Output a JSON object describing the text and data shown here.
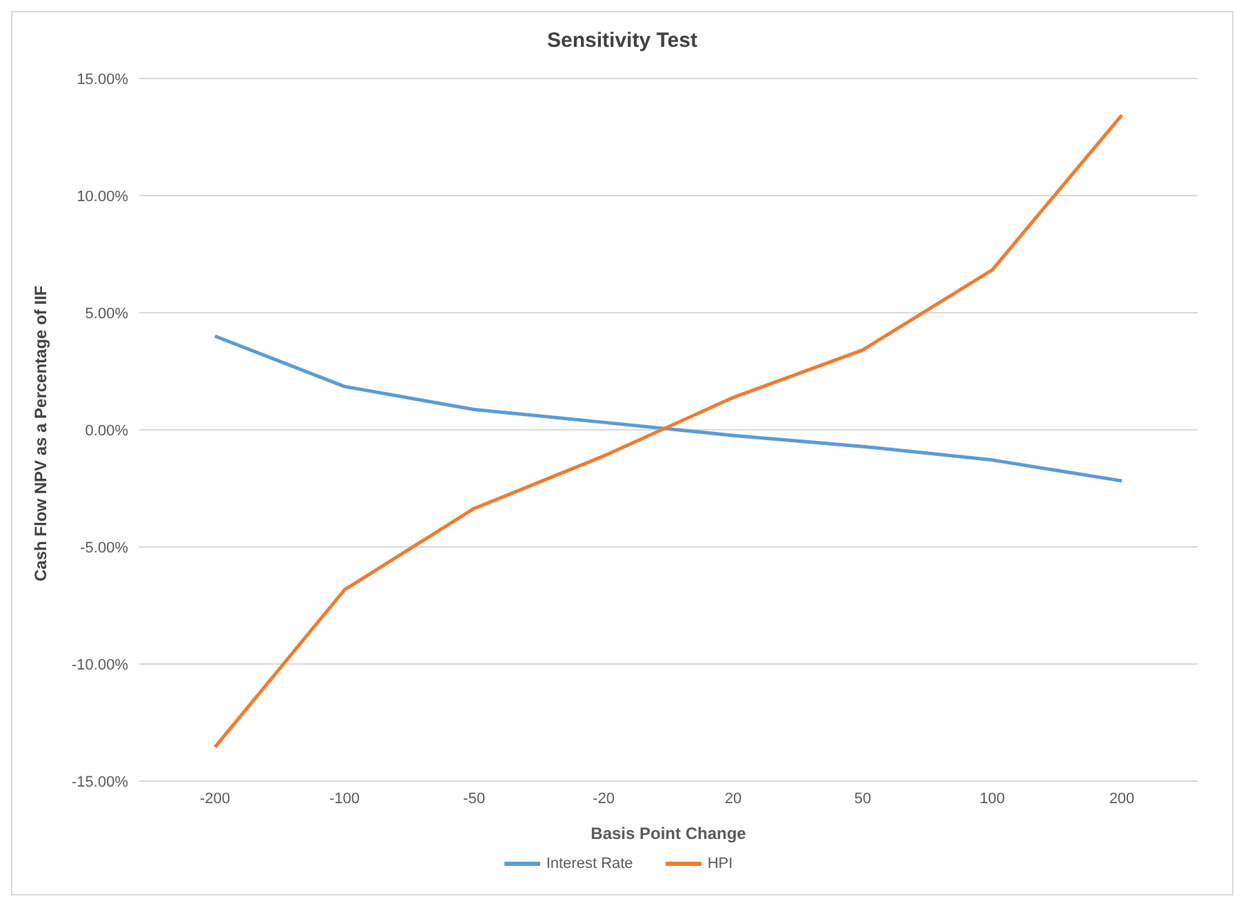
{
  "chart_data": {
    "type": "line",
    "title": "Sensitivity Test",
    "xlabel": "Basis Point Change",
    "ylabel": "Cash Flow NPV as a Percentage of IIF",
    "categories": [
      "-200",
      "-100",
      "-50",
      "-20",
      "20",
      "50",
      "100",
      "200"
    ],
    "series": [
      {
        "name": "Interest Rate",
        "color": "#5b9bd5",
        "values": [
          4.0,
          1.85,
          0.87,
          0.32,
          -0.24,
          -0.71,
          -1.29,
          -2.18
        ]
      },
      {
        "name": "HPI",
        "color": "#ed7d31",
        "values": [
          -13.55,
          -6.83,
          -3.36,
          -1.12,
          1.38,
          3.41,
          6.83,
          13.44
        ]
      }
    ],
    "ylim": [
      -15,
      15
    ],
    "yticks": [
      {
        "value": -15,
        "label": "-15.00%"
      },
      {
        "value": -10,
        "label": "-10.00%"
      },
      {
        "value": -5,
        "label": "-5.00%"
      },
      {
        "value": 0,
        "label": "0.00%"
      },
      {
        "value": 5,
        "label": "5.00%"
      },
      {
        "value": 10,
        "label": "10.00%"
      },
      {
        "value": 15,
        "label": "15.00%"
      }
    ],
    "grid": "y",
    "legend": "bottom",
    "marker": "none",
    "line_style": "solid"
  }
}
